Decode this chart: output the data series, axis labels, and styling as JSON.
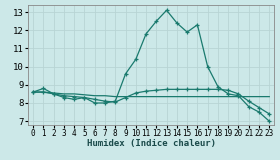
{
  "xlabel": "Humidex (Indice chaleur)",
  "bg_color": "#cce8e8",
  "grid_color": "#b8d4d4",
  "line_color": "#1a7a6e",
  "xlim": [
    -0.5,
    23.5
  ],
  "ylim": [
    6.8,
    13.4
  ],
  "xticks": [
    0,
    1,
    2,
    3,
    4,
    5,
    6,
    7,
    8,
    9,
    10,
    11,
    12,
    13,
    14,
    15,
    16,
    17,
    18,
    19,
    20,
    21,
    22,
    23
  ],
  "yticks": [
    7,
    8,
    9,
    10,
    11,
    12,
    13
  ],
  "line1_x": [
    0,
    1,
    2,
    3,
    4,
    5,
    6,
    7,
    8,
    9,
    10,
    11,
    12,
    13,
    14,
    15,
    16,
    17,
    18,
    19,
    20,
    21,
    22,
    23
  ],
  "line1_y": [
    8.6,
    8.8,
    8.5,
    8.3,
    8.2,
    8.3,
    8.0,
    8.0,
    8.1,
    9.6,
    10.4,
    11.8,
    12.5,
    13.1,
    12.4,
    11.9,
    12.3,
    10.0,
    8.9,
    8.5,
    8.4,
    7.8,
    7.5,
    7.0
  ],
  "line2_x": [
    0,
    1,
    2,
    3,
    4,
    5,
    6,
    7,
    8,
    9,
    10,
    11,
    12,
    13,
    14,
    15,
    16,
    17,
    18,
    19,
    20,
    21,
    22,
    23
  ],
  "line2_y": [
    8.6,
    8.6,
    8.55,
    8.5,
    8.5,
    8.45,
    8.4,
    8.4,
    8.35,
    8.35,
    8.35,
    8.35,
    8.35,
    8.35,
    8.35,
    8.35,
    8.35,
    8.35,
    8.35,
    8.35,
    8.35,
    8.35,
    8.35,
    8.35
  ],
  "line3_x": [
    0,
    1,
    2,
    3,
    4,
    5,
    6,
    7,
    8,
    9,
    10,
    11,
    12,
    13,
    14,
    15,
    16,
    17,
    18,
    19,
    20,
    21,
    22,
    23
  ],
  "line3_y": [
    8.6,
    8.6,
    8.5,
    8.4,
    8.35,
    8.3,
    8.2,
    8.1,
    8.05,
    8.3,
    8.55,
    8.65,
    8.7,
    8.75,
    8.75,
    8.75,
    8.75,
    8.75,
    8.75,
    8.7,
    8.5,
    8.1,
    7.75,
    7.4
  ]
}
